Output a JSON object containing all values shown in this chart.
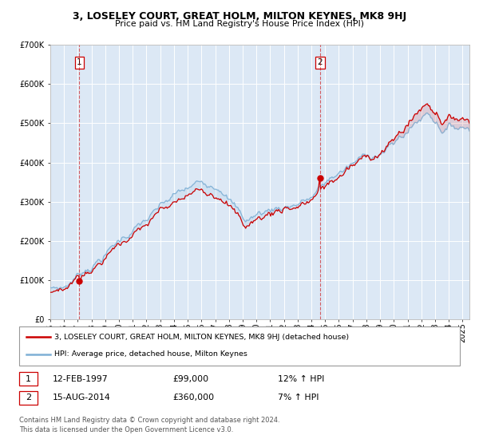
{
  "title": "3, LOSELEY COURT, GREAT HOLM, MILTON KEYNES, MK8 9HJ",
  "subtitle": "Price paid vs. HM Land Registry's House Price Index (HPI)",
  "legend_line1": "3, LOSELEY COURT, GREAT HOLM, MILTON KEYNES, MK8 9HJ (detached house)",
  "legend_line2": "HPI: Average price, detached house, Milton Keynes",
  "annotation1_date": "12-FEB-1997",
  "annotation1_price": "£99,000",
  "annotation1_hpi": "12% ↑ HPI",
  "annotation2_date": "15-AUG-2014",
  "annotation2_price": "£360,000",
  "annotation2_hpi": "7% ↑ HPI",
  "footer": "Contains HM Land Registry data © Crown copyright and database right 2024.\nThis data is licensed under the Open Government Licence v3.0.",
  "sale1_year": 1997.12,
  "sale1_price": 99000,
  "sale2_year": 2014.62,
  "sale2_price": 360000,
  "hpi_color": "#7eb0d5",
  "price_color": "#cc0000",
  "plot_bg": "#dce8f5",
  "grid_color": "#ffffff",
  "fig_bg": "#f0f0f0",
  "ylim_max": 700000,
  "xlim_start": 1995,
  "xlim_end": 2025.5
}
